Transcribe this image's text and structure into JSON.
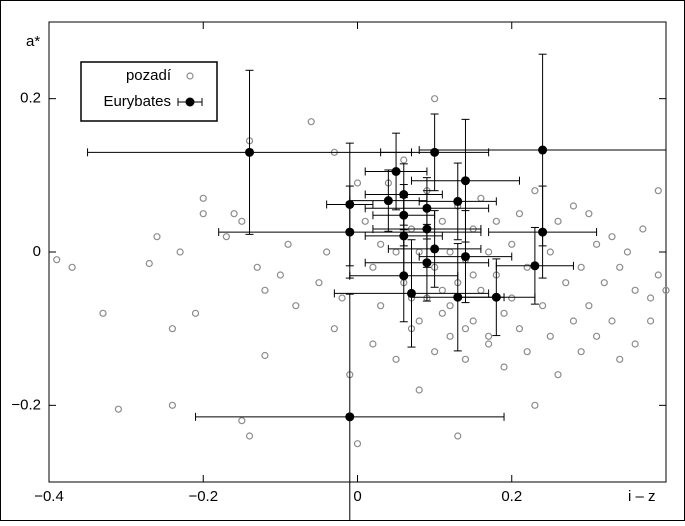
{
  "chart_data": {
    "type": "scatter",
    "y_label": "a*",
    "x_label": "i – z",
    "xlim": [
      -0.4,
      0.4
    ],
    "ylim": [
      -0.3,
      0.3
    ],
    "xticks": [
      {
        "value": -0.4,
        "label": "−0.4"
      },
      {
        "value": -0.2,
        "label": "−0.2"
      },
      0,
      0.2
    ],
    "yticks": [
      {
        "value": -0.2,
        "label": "−0.2"
      },
      0,
      0.2
    ],
    "legend": "upper left",
    "series": [
      {
        "name": "pozadí",
        "color": "#8c8c8c",
        "x": [
          -0.39,
          -0.37,
          -0.33,
          -0.31,
          -0.27,
          -0.26,
          -0.24,
          -0.24,
          -0.23,
          -0.21,
          -0.2,
          -0.2,
          -0.17,
          -0.16,
          -0.15,
          -0.15,
          -0.14,
          -0.14,
          -0.13,
          -0.12,
          -0.12,
          -0.1,
          -0.09,
          -0.08,
          -0.06,
          -0.05,
          -0.04,
          -0.03,
          -0.03,
          -0.02,
          -0.01,
          0.0,
          0.0,
          0.01,
          0.02,
          0.02,
          0.03,
          0.03,
          0.04,
          0.05,
          0.05,
          0.06,
          0.06,
          0.07,
          0.07,
          0.08,
          0.08,
          0.09,
          0.09,
          0.1,
          0.1,
          0.1,
          0.11,
          0.11,
          0.12,
          0.12,
          0.13,
          0.13,
          0.14,
          0.14,
          0.15,
          0.15,
          0.16,
          0.16,
          0.17,
          0.17,
          0.18,
          0.18,
          0.19,
          0.19,
          0.2,
          0.2,
          0.21,
          0.21,
          0.22,
          0.22,
          0.23,
          0.23,
          0.24,
          0.25,
          0.25,
          0.26,
          0.26,
          0.27,
          0.28,
          0.28,
          0.29,
          0.29,
          0.3,
          0.3,
          0.31,
          0.31,
          0.32,
          0.33,
          0.33,
          0.34,
          0.34,
          0.35,
          0.36,
          0.36,
          0.37,
          0.38,
          0.39,
          0.39,
          0.4,
          0.13,
          0.38,
          0.08,
          0.12,
          0.15,
          0.11,
          0.14,
          0.07,
          0.17
        ],
        "values": [
          -0.01,
          -0.02,
          -0.08,
          -0.205,
          -0.015,
          0.02,
          -0.1,
          -0.2,
          0.0,
          -0.08,
          0.07,
          0.05,
          0.02,
          0.05,
          0.04,
          -0.22,
          -0.24,
          0.145,
          -0.02,
          -0.05,
          -0.135,
          -0.03,
          0.01,
          -0.07,
          0.17,
          -0.04,
          0.0,
          0.13,
          -0.1,
          -0.06,
          -0.16,
          -0.25,
          0.09,
          0.04,
          -0.02,
          -0.12,
          0.01,
          -0.07,
          0.09,
          -0.14,
          0.0,
          -0.04,
          0.12,
          -0.1,
          0.03,
          -0.18,
          0.0,
          -0.06,
          0.08,
          -0.13,
          -0.02,
          0.2,
          0.04,
          -0.08,
          -0.11,
          0.0,
          -0.04,
          0.06,
          -0.14,
          -0.01,
          0.03,
          -0.09,
          -0.05,
          0.07,
          -0.12,
          0.0,
          -0.03,
          0.04,
          -0.08,
          -0.15,
          0.01,
          -0.06,
          -0.1,
          0.05,
          -0.02,
          -0.13,
          -0.2,
          0.08,
          -0.07,
          0.0,
          -0.11,
          0.04,
          -0.16,
          -0.04,
          0.06,
          -0.09,
          -0.02,
          -0.13,
          0.05,
          -0.07,
          0.01,
          -0.11,
          -0.04,
          0.02,
          -0.09,
          -0.14,
          -0.02,
          0.0,
          -0.05,
          -0.12,
          0.03,
          -0.09,
          0.08,
          -0.03,
          -0.05,
          -0.24,
          -0.06,
          -0.09,
          -0.07,
          -0.03,
          -0.05,
          -0.1,
          -0.06,
          -0.11
        ]
      },
      {
        "name": "Eurybates",
        "color": "#000000",
        "x": [
          -0.14,
          0.24,
          0.1,
          0.05,
          0.14,
          0.06,
          0.04,
          -0.01,
          0.13,
          0.09,
          0.06,
          0.09,
          -0.01,
          0.06,
          0.24,
          0.1,
          0.14,
          0.09,
          0.23,
          0.06,
          0.07,
          0.13,
          0.18,
          -0.01
        ],
        "values": [
          0.13,
          0.133,
          0.13,
          0.105,
          0.093,
          0.075,
          0.067,
          0.062,
          0.066,
          0.057,
          0.048,
          0.03,
          0.026,
          0.021,
          0.026,
          0.004,
          -0.006,
          -0.014,
          -0.018,
          -0.031,
          -0.054,
          -0.059,
          -0.059,
          -0.215
        ],
        "xerr": [
          0.21,
          0.16,
          0.07,
          0.04,
          0.07,
          0.05,
          0.05,
          0.03,
          0.05,
          0.08,
          0.04,
          0.07,
          0.17,
          0.05,
          0.07,
          0.06,
          0.06,
          0.08,
          0.05,
          0.07,
          0.1,
          0.06,
          0.05,
          0.2
        ],
        "yerr": [
          0.107,
          0.125,
          0.05,
          0.05,
          0.08,
          0.04,
          0.04,
          0.08,
          0.05,
          0.04,
          0.04,
          0.05,
          0.06,
          0.05,
          0.06,
          0.05,
          0.06,
          0.05,
          0.05,
          0.06,
          0.07,
          0.07,
          0.05,
          0.16
        ]
      }
    ]
  }
}
